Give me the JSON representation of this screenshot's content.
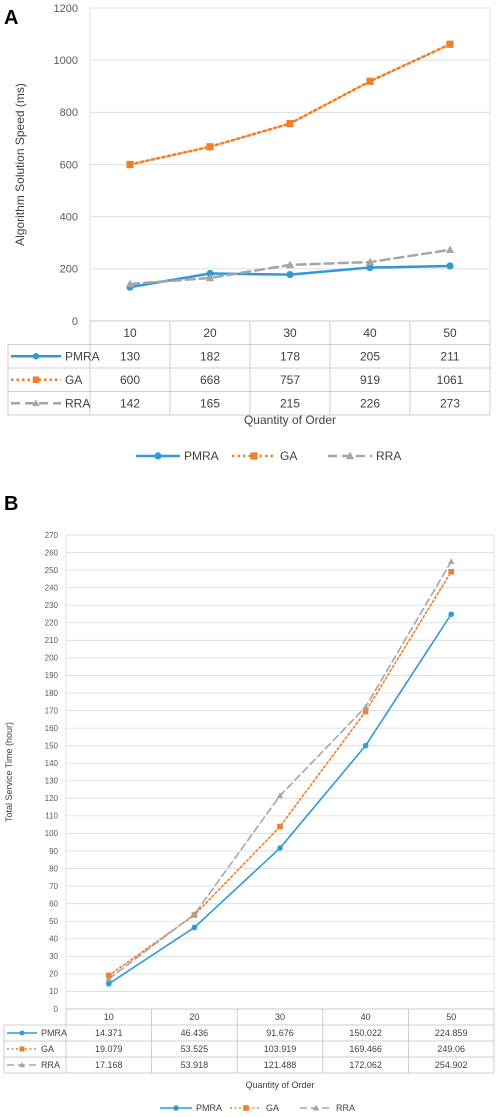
{
  "chart_data": [
    {
      "panel": "A",
      "type": "line",
      "categories": [
        "10",
        "20",
        "30",
        "40",
        "50"
      ],
      "series": [
        {
          "name": "PMRA",
          "values": [
            130,
            182,
            178,
            205,
            211
          ],
          "color": "#2E9AD6",
          "style": "solid",
          "marker": "circle"
        },
        {
          "name": "GA",
          "values": [
            600,
            668,
            757,
            919,
            1061
          ],
          "color": "#F07F2A",
          "style": "dotted",
          "marker": "square"
        },
        {
          "name": "RRA",
          "values": [
            142,
            165,
            215,
            226,
            273
          ],
          "color": "#A5A5A5",
          "style": "dashed",
          "marker": "triangle"
        }
      ],
      "table_rows": [
        [
          "130",
          "182",
          "178",
          "205",
          "211"
        ],
        [
          "600",
          "668",
          "757",
          "919",
          "1061"
        ],
        [
          "142",
          "165",
          "215",
          "226",
          "273"
        ]
      ],
      "xlabel": "Quantity of Order",
      "ylabel": "Algorithm Solution Speed (ms)",
      "ylim": [
        0,
        1200
      ],
      "yticks": [
        "0",
        "200",
        "400",
        "600",
        "800",
        "1000",
        "1200"
      ],
      "grid": true,
      "legend": "bottom"
    },
    {
      "panel": "B",
      "type": "line",
      "categories": [
        "10",
        "20",
        "30",
        "40",
        "50"
      ],
      "series": [
        {
          "name": "PMRA",
          "values": [
            14.371,
            46.436,
            91.676,
            150.022,
            224.859
          ],
          "color": "#2E9AD6",
          "style": "solid",
          "marker": "circle"
        },
        {
          "name": "GA",
          "values": [
            19.079,
            53.525,
            103.919,
            169.466,
            249.06
          ],
          "color": "#F07F2A",
          "style": "dotted",
          "marker": "square"
        },
        {
          "name": "RRA",
          "values": [
            17.168,
            53.918,
            121.488,
            172.062,
            254.902
          ],
          "color": "#A5A5A5",
          "style": "dashed",
          "marker": "triangle"
        }
      ],
      "table_rows": [
        [
          "14.371",
          "46.436",
          "91.676",
          "150.022",
          "224.859"
        ],
        [
          "19.079",
          "53.525",
          "103.919",
          "169.466",
          "249.06"
        ],
        [
          "17.168",
          "53.918",
          "121.488",
          "172.062",
          "254.902"
        ]
      ],
      "xlabel": "Quantity of Order",
      "ylabel": "Total Service Time (hour)",
      "ylim": [
        0,
        270
      ],
      "yticks": [
        "0",
        "10",
        "20",
        "30",
        "40",
        "50",
        "60",
        "70",
        "80",
        "90",
        "100",
        "110",
        "120",
        "130",
        "140",
        "150",
        "160",
        "170",
        "180",
        "190",
        "200",
        "210",
        "220",
        "230",
        "240",
        "250",
        "260",
        "270"
      ],
      "grid": true,
      "legend": "bottom"
    }
  ]
}
